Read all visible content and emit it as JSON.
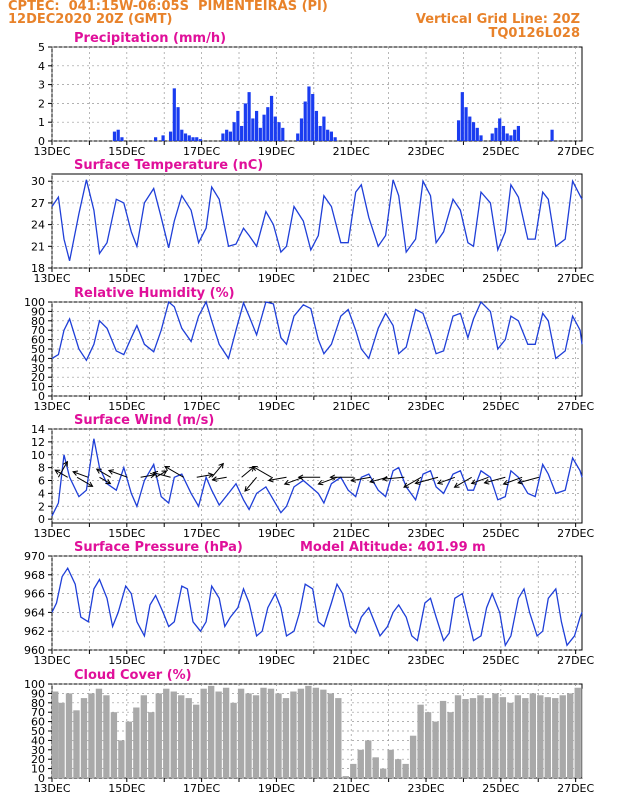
{
  "header": {
    "line1": "CPTEC:  041:15W-06:05S  PIMENTEIRAS (PI)",
    "line2": "12DEC2020 20Z (GMT)",
    "grid_note": "Vertical Grid Line: 20Z",
    "code": "TQ0126L028"
  },
  "colors": {
    "header": "#e8822a",
    "title": "#e0109a",
    "line": "#1f3fd8",
    "bar": "#1a3cf0",
    "cloud": "#a9a9a9"
  },
  "chart_data": [
    {
      "type": "bar",
      "title": "Precipitation (mm/h)",
      "ylim": [
        0,
        5
      ],
      "yticks": [
        0,
        1,
        2,
        3,
        4,
        5
      ],
      "xlabels": [
        "13DEC",
        "15DEC",
        "17DEC",
        "19DEC",
        "21DEC",
        "23DEC",
        "25DEC",
        "27DEC"
      ],
      "xlim_days": [
        12.83,
        27.0
      ],
      "x": [
        14.5,
        14.6,
        14.7,
        15.6,
        15.8,
        16.0,
        16.1,
        16.2,
        16.3,
        16.4,
        16.5,
        16.6,
        16.7,
        16.8,
        17.4,
        17.5,
        17.6,
        17.7,
        17.8,
        17.9,
        18.0,
        18.1,
        18.2,
        18.3,
        18.4,
        18.5,
        18.6,
        18.7,
        18.8,
        18.9,
        19.0,
        19.4,
        19.5,
        19.6,
        19.7,
        19.8,
        19.9,
        20.0,
        20.1,
        20.2,
        20.3,
        20.4,
        23.7,
        23.8,
        23.9,
        24.0,
        24.1,
        24.2,
        24.3,
        24.6,
        24.7,
        24.8,
        24.9,
        25.0,
        25.1,
        25.2,
        25.3,
        26.2
      ],
      "values": [
        0.5,
        0.6,
        0.2,
        0.2,
        0.3,
        0.5,
        2.8,
        1.8,
        0.6,
        0.4,
        0.3,
        0.2,
        0.2,
        0.1,
        0.4,
        0.6,
        0.5,
        1.0,
        1.6,
        0.8,
        2.0,
        2.6,
        1.2,
        1.6,
        0.7,
        1.4,
        1.8,
        2.4,
        1.3,
        1.0,
        0.7,
        0.4,
        1.2,
        2.1,
        2.9,
        2.5,
        1.6,
        0.8,
        1.3,
        0.6,
        0.5,
        0.2,
        1.1,
        2.6,
        1.8,
        1.3,
        1.0,
        0.7,
        0.3,
        0.4,
        0.7,
        1.2,
        0.8,
        0.4,
        0.3,
        0.6,
        0.8,
        0.6
      ]
    },
    {
      "type": "line",
      "title": "Surface Temperature (nC)",
      "ylim": [
        18,
        31
      ],
      "yticks": [
        18,
        21,
        24,
        27,
        30
      ],
      "xlabels": [
        "13DEC",
        "15DEC",
        "17DEC",
        "19DEC",
        "21DEC",
        "23DEC",
        "25DEC",
        "27DEC"
      ],
      "xlim_days": [
        12.83,
        27.0
      ],
      "x": [
        12.83,
        13.0,
        13.15,
        13.3,
        13.55,
        13.75,
        13.95,
        14.1,
        14.3,
        14.55,
        14.75,
        14.95,
        15.1,
        15.3,
        15.55,
        15.75,
        15.95,
        16.1,
        16.3,
        16.55,
        16.75,
        16.95,
        17.1,
        17.3,
        17.55,
        17.75,
        17.95,
        18.1,
        18.3,
        18.55,
        18.75,
        18.95,
        19.1,
        19.3,
        19.55,
        19.75,
        19.95,
        20.1,
        20.3,
        20.55,
        20.75,
        20.95,
        21.1,
        21.3,
        21.55,
        21.75,
        21.95,
        22.1,
        22.3,
        22.55,
        22.75,
        22.95,
        23.1,
        23.3,
        23.55,
        23.75,
        23.95,
        24.1,
        24.3,
        24.55,
        24.75,
        24.95,
        25.1,
        25.3,
        25.55,
        25.75,
        25.95,
        26.1,
        26.3,
        26.55,
        26.75,
        26.95,
        27.0
      ],
      "values": [
        26.5,
        27.8,
        22.0,
        19.0,
        25.5,
        30.2,
        26.0,
        20.0,
        21.5,
        27.5,
        27.0,
        23.0,
        21.0,
        27.0,
        29.0,
        25.0,
        20.8,
        24.5,
        28.0,
        26.0,
        21.5,
        23.5,
        29.2,
        27.5,
        21.0,
        21.3,
        23.5,
        22.5,
        21.0,
        25.8,
        24.0,
        20.2,
        21.0,
        26.5,
        24.5,
        20.5,
        22.5,
        28.0,
        26.5,
        21.5,
        21.5,
        28.5,
        29.5,
        25.0,
        21.0,
        22.5,
        30.2,
        28.0,
        20.2,
        22.0,
        30.0,
        28.0,
        21.5,
        23.0,
        27.5,
        26.0,
        21.5,
        21.0,
        28.5,
        27.0,
        20.5,
        23.0,
        29.5,
        27.8,
        22.0,
        22.0,
        28.5,
        27.5,
        21.0,
        22.0,
        30.0,
        28.0,
        27.5
      ]
    },
    {
      "type": "line",
      "title": "Relative Humidity (%)",
      "ylim": [
        0,
        100
      ],
      "yticks": [
        0,
        10,
        20,
        30,
        40,
        50,
        60,
        70,
        80,
        90,
        100
      ],
      "xlabels": [
        "13DEC",
        "15DEC",
        "17DEC",
        "19DEC",
        "21DEC",
        "23DEC",
        "25DEC",
        "27DEC"
      ],
      "xlim_days": [
        12.83,
        27.0
      ],
      "x": [
        12.83,
        13.0,
        13.15,
        13.3,
        13.55,
        13.75,
        13.95,
        14.1,
        14.3,
        14.55,
        14.75,
        14.95,
        15.1,
        15.3,
        15.55,
        15.75,
        15.95,
        16.1,
        16.3,
        16.55,
        16.75,
        16.95,
        17.1,
        17.3,
        17.55,
        17.75,
        17.95,
        18.1,
        18.3,
        18.55,
        18.75,
        18.95,
        19.1,
        19.3,
        19.55,
        19.75,
        19.95,
        20.1,
        20.3,
        20.55,
        20.75,
        20.95,
        21.1,
        21.3,
        21.55,
        21.75,
        21.95,
        22.1,
        22.3,
        22.55,
        22.75,
        22.95,
        23.1,
        23.3,
        23.55,
        23.75,
        23.95,
        24.1,
        24.3,
        24.55,
        24.75,
        24.95,
        25.1,
        25.3,
        25.55,
        25.75,
        25.95,
        26.1,
        26.3,
        26.55,
        26.75,
        26.95,
        27.0
      ],
      "values": [
        40,
        44,
        70,
        82,
        50,
        38,
        55,
        80,
        72,
        48,
        44,
        62,
        75,
        55,
        47,
        70,
        100,
        95,
        72,
        58,
        85,
        100,
        80,
        55,
        40,
        70,
        99,
        85,
        65,
        100,
        98,
        62,
        55,
        85,
        97,
        93,
        60,
        45,
        55,
        85,
        92,
        70,
        50,
        40,
        72,
        88,
        75,
        45,
        52,
        92,
        88,
        65,
        45,
        48,
        85,
        88,
        62,
        82,
        100,
        90,
        50,
        60,
        85,
        80,
        55,
        55,
        88,
        80,
        40,
        48,
        85,
        70,
        55
      ]
    },
    {
      "type": "line",
      "title": "Surface Wind (m/s)",
      "ylim": [
        -0.6,
        14
      ],
      "yticks": [
        0,
        2,
        4,
        6,
        8,
        10,
        12,
        14
      ],
      "xlabels": [
        "13DEC",
        "15DEC",
        "17DEC",
        "19DEC",
        "21DEC",
        "23DEC",
        "25DEC",
        "27DEC"
      ],
      "xlim_days": [
        12.83,
        27.0
      ],
      "x": [
        12.83,
        13.0,
        13.15,
        13.3,
        13.55,
        13.75,
        13.95,
        14.1,
        14.3,
        14.55,
        14.75,
        14.95,
        15.1,
        15.3,
        15.55,
        15.75,
        15.95,
        16.1,
        16.3,
        16.55,
        16.75,
        16.95,
        17.1,
        17.3,
        17.55,
        17.75,
        17.95,
        18.1,
        18.3,
        18.55,
        18.75,
        18.95,
        19.1,
        19.3,
        19.55,
        19.75,
        19.95,
        20.1,
        20.3,
        20.55,
        20.75,
        20.95,
        21.1,
        21.3,
        21.55,
        21.75,
        21.95,
        22.1,
        22.3,
        22.55,
        22.75,
        22.95,
        23.1,
        23.3,
        23.55,
        23.75,
        23.95,
        24.1,
        24.3,
        24.55,
        24.75,
        24.95,
        25.1,
        25.3,
        25.55,
        25.75,
        25.95,
        26.1,
        26.3,
        26.55,
        26.75,
        26.95,
        27.0
      ],
      "values": [
        0.5,
        2.5,
        10.0,
        6.5,
        3.5,
        4.5,
        12.5,
        8.0,
        5.5,
        4.5,
        8.0,
        4.0,
        2.0,
        6.0,
        8.5,
        3.5,
        2.5,
        6.5,
        7.0,
        4.0,
        2.0,
        6.5,
        4.5,
        2.2,
        4.0,
        5.5,
        3.0,
        1.5,
        4.0,
        5.0,
        3.0,
        1.0,
        2.0,
        5.0,
        6.0,
        5.0,
        4.0,
        2.5,
        5.5,
        6.5,
        4.5,
        3.5,
        6.5,
        7.0,
        4.5,
        3.5,
        7.5,
        8.0,
        5.0,
        3.0,
        7.0,
        7.5,
        5.0,
        4.0,
        7.0,
        7.5,
        4.5,
        4.5,
        7.5,
        6.5,
        3.0,
        3.5,
        7.5,
        6.5,
        4.0,
        3.5,
        8.5,
        7.0,
        4.0,
        4.5,
        9.5,
        7.5,
        6.5
      ],
      "arrows_x": [
        13.0,
        13.25,
        13.5,
        13.8,
        14.1,
        14.4,
        14.85,
        15.2,
        15.6,
        16.0,
        16.35,
        16.7,
        17.1,
        17.5,
        17.9,
        18.3,
        18.7,
        19.1,
        19.55,
        20.0,
        20.45,
        20.9,
        21.35,
        21.8,
        22.25,
        22.7,
        23.15,
        23.6,
        24.05,
        24.5,
        24.95,
        25.4,
        25.85
      ],
      "arrows_dir": [
        30,
        300,
        120,
        290,
        120,
        300,
        290,
        80,
        60,
        285,
        300,
        80,
        40,
        260,
        50,
        220,
        300,
        260,
        250,
        270,
        250,
        270,
        260,
        255,
        265,
        240,
        255,
        250,
        240,
        250,
        255,
        250,
        255
      ],
      "arrows_len": [
        1.0,
        0.8,
        1.0,
        0.9,
        0.7,
        0.9,
        1.1,
        0.8,
        0.7,
        1.0,
        1.2,
        0.9,
        1.0,
        0.8,
        0.9,
        1.0,
        1.2,
        1.0,
        1.1,
        1.2,
        1.1,
        1.3,
        1.1,
        1.0,
        1.2,
        1.1,
        1.3,
        1.0,
        1.1,
        1.0,
        1.2,
        1.1,
        1.2
      ]
    },
    {
      "type": "line",
      "title": "Surface Pressure (hPa)",
      "annotation": "Model Altitude: 401.99 m",
      "ylim": [
        960,
        970
      ],
      "yticks": [
        960,
        962,
        964,
        966,
        968,
        970
      ],
      "xlabels": [
        "13DEC",
        "15DEC",
        "17DEC",
        "19DEC",
        "21DEC",
        "23DEC",
        "25DEC",
        "27DEC"
      ],
      "xlim_days": [
        12.83,
        27.0
      ],
      "x": [
        12.83,
        12.95,
        13.1,
        13.25,
        13.45,
        13.6,
        13.8,
        13.95,
        14.1,
        14.3,
        14.45,
        14.6,
        14.8,
        14.95,
        15.1,
        15.3,
        15.45,
        15.6,
        15.8,
        15.95,
        16.1,
        16.3,
        16.45,
        16.6,
        16.8,
        16.95,
        17.1,
        17.3,
        17.45,
        17.6,
        17.8,
        17.95,
        18.1,
        18.3,
        18.45,
        18.6,
        18.8,
        18.95,
        19.1,
        19.3,
        19.45,
        19.6,
        19.8,
        19.95,
        20.1,
        20.3,
        20.45,
        20.6,
        20.8,
        20.95,
        21.1,
        21.3,
        21.45,
        21.6,
        21.8,
        21.95,
        22.1,
        22.3,
        22.45,
        22.6,
        22.8,
        22.95,
        23.1,
        23.3,
        23.45,
        23.6,
        23.8,
        23.95,
        24.1,
        24.3,
        24.45,
        24.6,
        24.8,
        24.95,
        25.1,
        25.3,
        25.45,
        25.6,
        25.8,
        25.95,
        26.1,
        26.3,
        26.45,
        26.6,
        26.8,
        26.95,
        27.0
      ],
      "values": [
        964.0,
        965.0,
        967.8,
        968.7,
        967.0,
        963.5,
        963.0,
        966.5,
        967.5,
        965.5,
        962.5,
        964.0,
        966.8,
        966.0,
        963.0,
        961.5,
        964.8,
        965.8,
        964.0,
        962.5,
        963.0,
        966.8,
        966.5,
        963.0,
        962.0,
        963.0,
        966.8,
        965.5,
        962.5,
        963.5,
        964.5,
        966.5,
        965.0,
        961.5,
        962.0,
        964.5,
        966.0,
        964.5,
        961.5,
        962.0,
        964.0,
        967.0,
        966.5,
        963.0,
        962.5,
        965.0,
        967.0,
        966.0,
        962.5,
        961.8,
        963.5,
        964.5,
        963.0,
        961.5,
        962.5,
        964.0,
        964.8,
        963.5,
        961.5,
        961.0,
        965.0,
        965.5,
        963.5,
        961.0,
        961.8,
        965.5,
        966.0,
        963.5,
        961.0,
        961.5,
        964.5,
        966.0,
        964.0,
        960.5,
        961.5,
        965.5,
        966.5,
        964.0,
        961.5,
        962.0,
        965.5,
        966.5,
        963.0,
        960.5,
        961.5,
        963.5,
        964.0
      ]
    },
    {
      "type": "area",
      "title": "Cloud Cover (%)",
      "ylim": [
        0,
        100
      ],
      "yticks": [
        0,
        10,
        20,
        30,
        40,
        50,
        60,
        70,
        80,
        90,
        100
      ],
      "xlabels": [
        "13DEC",
        "15DEC",
        "17DEC",
        "19DEC",
        "21DEC",
        "23DEC",
        "25DEC",
        "27DEC"
      ],
      "xlim_days": [
        12.83,
        27.0
      ],
      "x": [
        12.83,
        13.0,
        13.2,
        13.4,
        13.6,
        13.8,
        14.0,
        14.2,
        14.4,
        14.6,
        14.8,
        15.0,
        15.2,
        15.4,
        15.6,
        15.8,
        16.0,
        16.2,
        16.4,
        16.6,
        16.8,
        17.0,
        17.2,
        17.4,
        17.6,
        17.8,
        18.0,
        18.2,
        18.4,
        18.6,
        18.8,
        19.0,
        19.2,
        19.4,
        19.6,
        19.8,
        20.0,
        20.2,
        20.4,
        20.6,
        20.8,
        21.0,
        21.2,
        21.4,
        21.6,
        21.8,
        22.0,
        22.2,
        22.4,
        22.6,
        22.8,
        23.0,
        23.2,
        23.4,
        23.6,
        23.8,
        24.0,
        24.2,
        24.4,
        24.6,
        24.8,
        25.0,
        25.2,
        25.4,
        25.6,
        25.8,
        26.0,
        26.2,
        26.4,
        26.6,
        26.8,
        27.0
      ],
      "values": [
        92,
        80,
        90,
        72,
        85,
        90,
        95,
        88,
        70,
        40,
        60,
        75,
        88,
        70,
        90,
        95,
        92,
        88,
        85,
        78,
        95,
        98,
        92,
        96,
        80,
        95,
        90,
        88,
        96,
        95,
        90,
        85,
        92,
        95,
        98,
        96,
        94,
        90,
        85,
        2,
        15,
        30,
        40,
        22,
        10,
        30,
        20,
        15,
        45,
        78,
        70,
        60,
        82,
        70,
        88,
        84,
        85,
        88,
        85,
        90,
        86,
        80,
        88,
        85,
        90,
        88,
        86,
        85,
        88,
        90,
        96,
        95
      ]
    }
  ]
}
